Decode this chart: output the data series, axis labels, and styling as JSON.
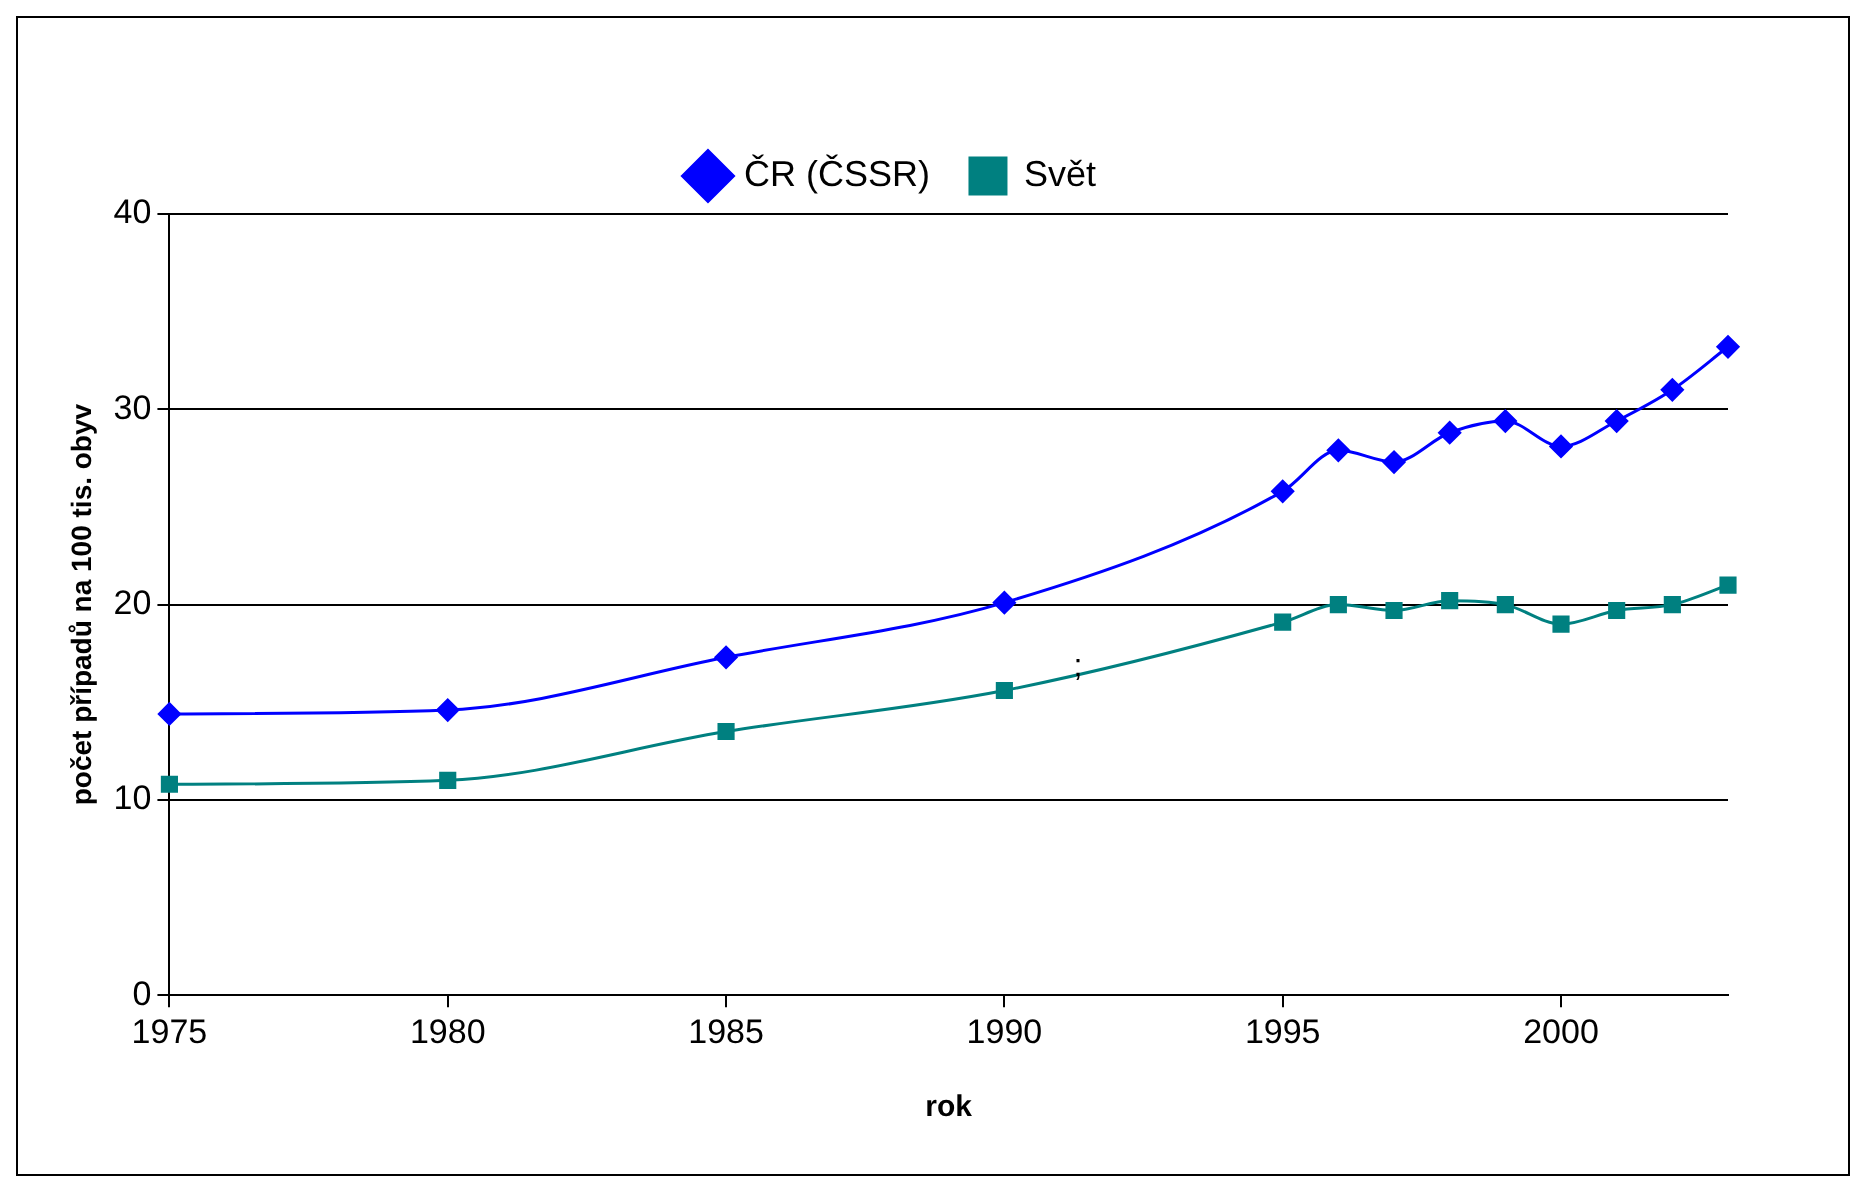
{
  "chart_data": {
    "type": "line",
    "xlabel": "rok",
    "ylabel": "počet případů na 100 tis. obyv",
    "x": [
      1975,
      1980,
      1985,
      1990,
      1995,
      1996,
      1997,
      1998,
      1999,
      2000,
      2001,
      2002,
      2003
    ],
    "series": [
      {
        "name": "ČR (ČSSR)",
        "color": "#0000ff",
        "marker": "diamond",
        "values": [
          14.4,
          14.6,
          17.3,
          20.1,
          25.8,
          27.9,
          27.3,
          28.8,
          29.4,
          28.1,
          29.4,
          31.0,
          33.2
        ]
      },
      {
        "name": "Svět",
        "color": "#008080",
        "marker": "square",
        "values": [
          10.8,
          11.0,
          13.5,
          15.6,
          19.1,
          20.0,
          19.7,
          20.2,
          20.0,
          19.0,
          19.7,
          20.0,
          21.0
        ]
      }
    ],
    "xlim": [
      1975,
      2003
    ],
    "xticks": [
      1975,
      1980,
      1985,
      1990,
      1995,
      2000
    ],
    "ylim": [
      0,
      40
    ],
    "yticks": [
      0,
      10,
      20,
      30,
      40
    ],
    "grid": "y",
    "legend": "top",
    "line_style": "solid",
    "annotations": [
      ";"
    ]
  }
}
